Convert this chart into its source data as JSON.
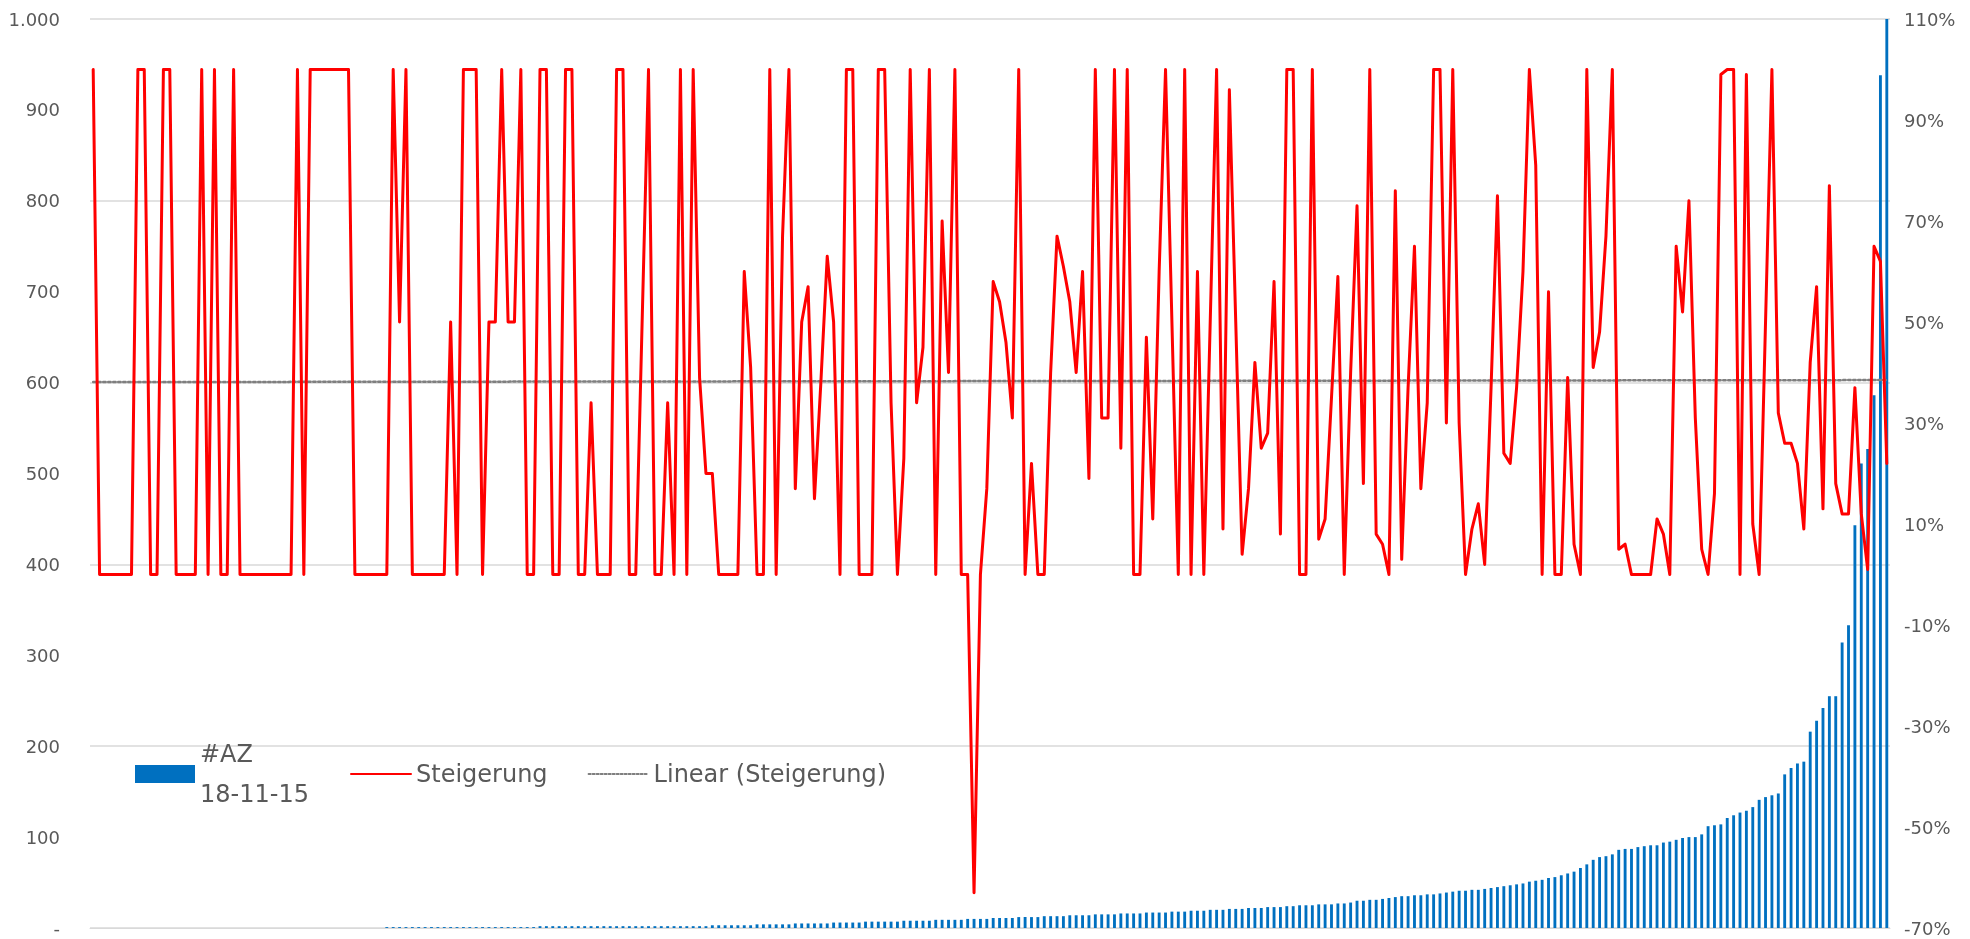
{
  "chart_data": {
    "type": "bar",
    "categories": [
      null,
      null,
      null,
      null,
      null,
      null,
      null,
      null,
      null,
      null,
      null,
      null,
      null,
      null,
      null,
      null,
      null,
      null,
      null,
      null,
      null,
      null,
      null,
      null,
      null,
      null,
      null,
      null,
      null,
      null,
      null,
      null,
      null,
      null,
      null,
      null,
      null,
      null,
      null,
      null,
      null,
      null,
      null,
      null,
      null,
      null,
      null,
      null,
      null,
      null,
      null,
      null,
      null,
      null,
      null,
      null,
      null,
      null,
      null,
      null,
      null,
      null,
      null,
      null,
      null,
      null,
      null,
      null,
      null,
      null,
      null,
      null,
      null,
      null,
      null,
      null,
      null,
      null,
      null,
      null,
      null,
      null,
      null,
      null,
      null,
      null,
      null,
      null,
      null,
      null,
      null,
      null,
      null,
      null,
      null,
      null,
      null,
      null,
      null,
      null,
      null,
      null,
      null,
      null,
      null,
      null,
      null,
      null,
      null,
      null,
      null,
      null,
      null,
      null,
      null,
      null,
      null,
      null,
      null,
      null,
      null,
      null,
      null,
      null,
      null,
      null,
      null,
      null,
      null,
      null,
      null,
      null,
      null,
      null,
      null,
      null,
      null,
      null,
      null,
      null,
      null,
      null,
      null,
      null,
      null,
      null,
      null,
      null,
      null,
      null,
      null,
      null,
      null,
      null,
      null,
      null,
      null,
      null,
      null,
      null,
      null,
      null,
      null,
      null,
      null,
      null,
      null,
      null,
      null,
      null,
      null,
      null,
      null,
      null,
      null,
      null,
      null,
      null,
      null,
      null,
      null,
      null,
      null,
      null,
      null,
      null,
      null,
      null,
      null,
      null,
      null,
      null,
      null,
      null,
      null,
      null,
      null,
      null,
      null,
      null,
      null,
      null,
      null,
      null,
      null,
      null,
      null,
      null,
      null,
      null,
      null,
      null,
      null,
      null,
      null,
      null,
      null,
      null,
      null,
      null,
      null,
      null,
      null,
      null,
      null,
      null,
      null,
      null,
      null,
      null,
      null,
      null,
      null,
      null,
      null,
      null,
      null,
      null,
      null,
      null,
      null,
      null,
      null,
      null,
      null,
      null,
      null,
      null,
      null,
      null,
      null,
      null,
      null,
      null,
      null,
      null,
      null,
      null,
      null,
      null,
      null,
      null,
      null,
      null,
      null,
      null,
      null,
      null,
      null,
      null,
      null,
      null,
      null,
      null,
      null,
      null,
      null,
      null,
      null,
      null,
      null,
      null
    ],
    "series": [
      {
        "name": "#AZ 18-11-15",
        "type": "bar",
        "color": "#0070c0",
        "values": [
          0,
          0,
          0,
          0,
          0,
          0,
          0,
          0,
          0,
          0,
          0,
          0,
          0,
          0,
          0,
          0,
          0,
          0,
          0,
          0,
          0,
          0,
          0,
          0,
          0,
          0,
          0,
          0,
          0,
          0,
          0,
          0,
          0,
          0,
          0,
          0,
          0,
          0,
          0,
          0,
          0,
          0,
          0,
          0,
          0,
          0,
          1,
          1,
          1,
          1,
          1,
          1,
          1,
          1,
          1,
          1,
          1,
          1,
          1,
          1,
          1,
          1,
          1,
          1,
          1,
          1,
          1,
          1,
          1,
          1,
          2,
          2,
          2,
          2,
          2,
          2,
          2,
          2,
          2,
          2,
          2,
          2,
          2,
          2,
          2,
          2,
          2,
          2,
          2,
          2,
          2,
          2,
          2,
          2,
          2,
          2,
          2,
          3,
          3,
          3,
          3,
          3,
          3,
          3,
          4,
          4,
          4,
          4,
          4,
          4,
          5,
          5,
          5,
          5,
          5,
          5,
          6,
          6,
          6,
          6,
          6,
          7,
          7,
          7,
          7,
          7,
          7,
          8,
          8,
          8,
          8,
          8,
          9,
          9,
          9,
          9,
          9,
          10,
          10,
          10,
          10,
          11,
          11,
          11,
          11,
          12,
          12,
          12,
          12,
          13,
          13,
          13,
          13,
          14,
          14,
          14,
          14,
          15,
          15,
          15,
          15,
          16,
          16,
          16,
          16,
          17,
          17,
          17,
          17,
          18,
          18,
          18,
          19,
          19,
          19,
          20,
          20,
          20,
          21,
          21,
          21,
          22,
          22,
          22,
          23,
          23,
          23,
          24,
          24,
          25,
          25,
          25,
          26,
          26,
          26,
          27,
          27,
          28,
          30,
          30,
          31,
          31,
          32,
          33,
          34,
          35,
          35,
          36,
          36,
          37,
          37,
          38,
          39,
          40,
          41,
          41,
          42,
          42,
          43,
          44,
          45,
          46,
          47,
          48,
          49,
          51,
          52,
          53,
          55,
          56,
          58,
          60,
          62,
          66,
          70,
          75,
          78,
          79,
          81,
          86,
          87,
          87,
          89,
          90,
          91,
          91,
          94,
          95,
          97,
          99,
          100,
          100,
          103,
          112,
          113,
          114,
          121,
          124,
          127,
          129,
          133,
          141,
          144,
          146,
          148,
          169,
          176,
          181,
          183,
          216,
          228,
          242,
          255,
          255,
          314,
          333,
          443,
          511,
          527,
          586,
          938,
          1000
        ]
      },
      {
        "name": "Steigerung",
        "type": "line",
        "axis": "y2",
        "color": "#ff0000",
        "line_style": "solid",
        "values": [
          100,
          0,
          0,
          0,
          0,
          0,
          0,
          100,
          100,
          0,
          0,
          100,
          100,
          0,
          0,
          0,
          0,
          100,
          0,
          100,
          0,
          0,
          100,
          0,
          0,
          0,
          0,
          0,
          0,
          0,
          0,
          0,
          100,
          0,
          100,
          100,
          100,
          100,
          100,
          100,
          100,
          0,
          0,
          0,
          0,
          0,
          0,
          100,
          50,
          100,
          0,
          0,
          0,
          0,
          0,
          0,
          50,
          0,
          100,
          100,
          100,
          0,
          50,
          50,
          100,
          50,
          50,
          100,
          0,
          0,
          100,
          100,
          0,
          0,
          100,
          100,
          0,
          0,
          34,
          0,
          0,
          0,
          100,
          100,
          0,
          0,
          50,
          100,
          0,
          0,
          34,
          0,
          100,
          0,
          100,
          39,
          20,
          20,
          0,
          0,
          0,
          0,
          60,
          41,
          0,
          0,
          100,
          0,
          67,
          100,
          17,
          50,
          57,
          15,
          38,
          63,
          50,
          0,
          100,
          100,
          0,
          0,
          0,
          100,
          100,
          34,
          0,
          23,
          100,
          34,
          45,
          100,
          0,
          70,
          40,
          100,
          0,
          0,
          -63,
          0,
          17,
          58,
          54,
          46,
          31,
          100,
          0,
          22,
          0,
          0,
          40,
          67,
          61,
          54,
          40,
          60,
          19,
          100,
          31,
          31,
          100,
          25,
          100,
          0,
          0,
          47,
          11,
          60,
          100,
          50,
          0,
          100,
          0,
          60,
          0,
          50,
          100,
          9,
          96,
          50,
          4,
          17,
          42,
          25,
          28,
          58,
          8,
          100,
          100,
          0,
          0,
          100,
          7,
          11,
          35,
          59,
          0,
          40,
          73,
          18,
          100,
          8,
          6,
          0,
          76,
          3,
          37,
          65,
          17,
          34,
          100,
          100,
          30,
          100,
          30,
          0,
          9,
          14,
          2,
          37,
          75,
          24,
          22,
          37,
          60,
          100,
          81,
          0,
          56,
          0,
          0,
          39,
          6,
          0,
          100,
          41,
          48,
          67,
          100,
          5,
          6,
          0,
          0,
          0,
          0,
          11,
          8,
          0,
          65,
          52,
          74,
          31,
          5,
          0,
          16,
          99,
          100,
          100,
          0,
          99,
          10,
          0,
          50,
          100,
          32,
          26,
          26,
          22,
          9,
          42,
          57,
          13,
          77,
          18,
          12,
          12,
          37,
          12,
          1,
          65,
          62,
          22
        ]
      },
      {
        "name": "Linear (Steigerung)",
        "type": "line",
        "axis": "y2",
        "color": "#7f7f7f",
        "line_style": "dotted",
        "values": [
          38.1,
          null,
          null,
          null,
          null,
          null,
          null,
          null,
          null,
          null,
          null,
          null,
          null,
          null,
          null,
          null,
          null,
          null,
          null,
          null,
          null,
          null,
          null,
          null,
          null,
          null,
          null,
          null,
          null,
          null,
          null,
          null,
          null,
          null,
          null,
          null,
          null,
          null,
          null,
          null,
          null,
          null,
          null,
          null,
          null,
          null,
          null,
          null,
          null,
          null,
          null,
          null,
          null,
          null,
          null,
          null,
          null,
          null,
          null,
          null,
          null,
          null,
          null,
          null,
          null,
          null,
          null,
          null,
          null,
          null,
          null,
          null,
          null,
          null,
          null,
          null,
          null,
          null,
          null,
          null,
          null,
          null,
          null,
          null,
          null,
          null,
          null,
          null,
          null,
          null,
          null,
          null,
          null,
          null,
          null,
          null,
          null,
          null,
          null,
          null,
          null,
          null,
          null,
          null,
          null,
          null,
          null,
          null,
          null,
          null,
          null,
          null,
          null,
          null,
          null,
          null,
          null,
          null,
          null,
          null,
          null,
          null,
          null,
          null,
          null,
          null,
          null,
          null,
          null,
          null,
          null,
          null,
          null,
          null,
          null,
          null,
          null,
          null,
          null,
          null,
          null,
          null,
          null,
          null,
          null,
          null,
          null,
          null,
          null,
          null,
          null,
          null,
          null,
          null,
          null,
          null,
          null,
          null,
          null,
          null,
          null,
          null,
          null,
          null,
          null,
          null,
          null,
          null,
          null,
          null,
          null,
          null,
          null,
          null,
          null,
          null,
          null,
          null,
          null,
          null,
          null,
          null,
          null,
          null,
          null,
          null,
          null,
          null,
          null,
          null,
          null,
          null,
          null,
          null,
          null,
          null,
          null,
          null,
          null,
          null,
          null,
          null,
          null,
          null,
          null,
          null,
          null,
          null,
          null,
          null,
          null,
          null,
          null,
          null,
          null,
          null,
          null,
          null,
          null,
          null,
          null,
          null,
          null,
          null,
          null,
          null,
          null,
          null,
          null,
          null,
          null,
          null,
          null,
          null,
          null,
          null,
          null,
          null,
          null,
          null,
          null,
          null,
          null,
          null,
          null,
          null,
          null,
          null,
          null,
          null,
          null,
          null,
          null,
          null,
          null,
          null,
          null,
          null,
          null,
          null,
          null,
          null,
          null,
          null,
          null,
          null,
          null,
          null,
          null,
          null,
          null,
          null,
          null,
          null,
          null,
          null,
          null,
          null,
          null,
          null,
          null,
          38.5
        ]
      }
    ],
    "ylim": [
      0,
      1000
    ],
    "yticks": [
      {
        "value": 0,
        "label": "-"
      },
      100,
      200,
      300,
      400,
      500,
      600,
      700,
      800,
      900,
      {
        "value": 1000,
        "label": "1.000"
      }
    ],
    "y2lim": [
      -70,
      110
    ],
    "y2ticks": [
      {
        "value": -70,
        "label": "-70%"
      },
      {
        "value": -50,
        "label": "-50%"
      },
      {
        "value": -30,
        "label": "-30%"
      },
      {
        "value": -10,
        "label": "-10%"
      },
      {
        "value": 10,
        "label": "10%"
      },
      {
        "value": 30,
        "label": "30%"
      },
      {
        "value": 50,
        "label": "50%"
      },
      {
        "value": 70,
        "label": "70%"
      },
      {
        "value": 90,
        "label": "90%"
      },
      {
        "value": 110,
        "label": "110%"
      }
    ],
    "grid": "y",
    "legend": "bottom left",
    "marker": "none"
  }
}
